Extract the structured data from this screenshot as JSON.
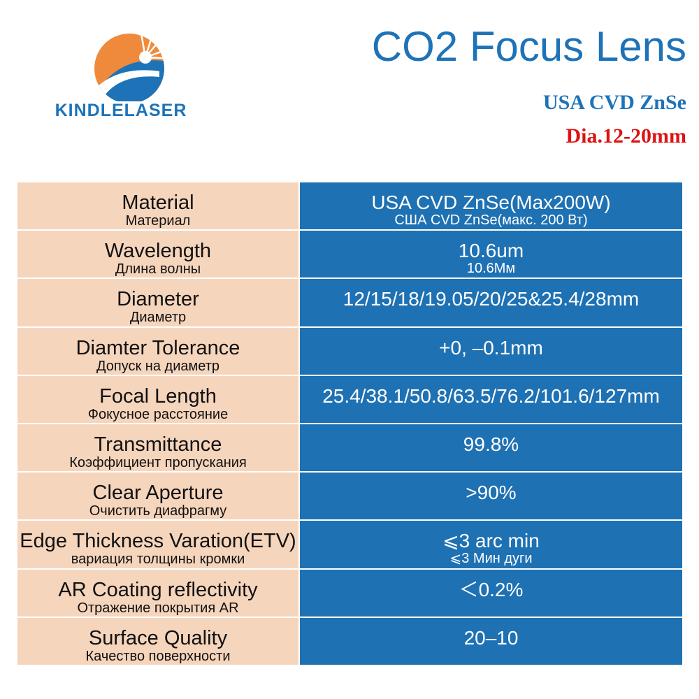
{
  "brand": {
    "logo_text": "KINDLELASER",
    "accent_color": "#1e73b8",
    "sun_color": "#ef8a3c"
  },
  "header": {
    "title": "CO2 Focus Lens",
    "subtitle": "USA CVD ZnSe",
    "subtitle_red": "Dia.12-20mm",
    "red_color": "#dd1212"
  },
  "colors": {
    "label_bg": "#f6d5bd",
    "value_bg": "#1e71b3"
  },
  "specs": [
    {
      "label_en": "Material",
      "label_ru": "Материал",
      "value": "USA CVD ZnSe(Max200W)",
      "value_sub": "США CVD ZnSe(макс. 200 Вт)"
    },
    {
      "label_en": "Wavelength",
      "label_ru": "Длина волны",
      "value": "10.6um",
      "value_sub": "10.6Мм"
    },
    {
      "label_en": "Diameter",
      "label_ru": "Диаметр",
      "value": "12/15/18/19.05/20/25&25.4/28mm",
      "value_sub": ""
    },
    {
      "label_en": "Diamter Tolerance",
      "label_ru": "Допуск на диаметр",
      "value": "+0, –0.1mm",
      "value_sub": ""
    },
    {
      "label_en": "Focal Length",
      "label_ru": "Фокусное расстояние",
      "value": "25.4/38.1/50.8/63.5/76.2/101.6/127mm",
      "value_sub": ""
    },
    {
      "label_en": "Transmittance",
      "label_ru": "Коэффициент пропускания",
      "value": "99.8%",
      "value_sub": ""
    },
    {
      "label_en": "Clear Aperture",
      "label_ru": "Очистить диафрагму",
      "value": ">90%",
      "value_sub": ""
    },
    {
      "label_en": "Edge Thickness Varation(ETV)",
      "label_ru": "вариация толщины кромки",
      "value": "⩽3 arc min",
      "value_sub": "⩽3 Мин дуги"
    },
    {
      "label_en": "AR Coating reflectivity",
      "label_ru": "Отражение покрытия AR",
      "value": "＜0.2%",
      "value_sub": ""
    },
    {
      "label_en": "Surface Quality",
      "label_ru": "Качество поверхности",
      "value": "20–10",
      "value_sub": ""
    }
  ]
}
